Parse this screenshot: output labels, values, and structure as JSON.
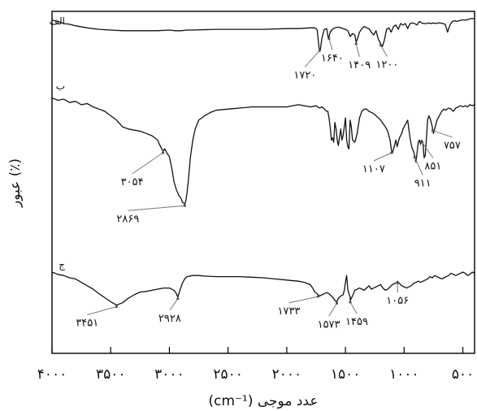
{
  "chart_data": {
    "type": "line",
    "title": "",
    "xlabel": "عدد موجی (cm⁻¹)",
    "ylabel": "عبور (٪)",
    "xlim": [
      4000,
      400
    ],
    "x_ticks": [
      {
        "value": 4000,
        "label": "۴۰۰۰"
      },
      {
        "value": 3500,
        "label": "۳۵۰۰"
      },
      {
        "value": 3000,
        "label": "۳۰۰۰"
      },
      {
        "value": 2500,
        "label": "۲۵۰۰"
      },
      {
        "value": 2000,
        "label": "۲۰۰۰"
      },
      {
        "value": 1500,
        "label": "۱۵۰۰"
      },
      {
        "value": 1000,
        "label": "۱۰۰۰"
      },
      {
        "value": 500,
        "label": "۵۰۰"
      }
    ],
    "grid": false,
    "legend": "none",
    "series": [
      {
        "name": "الف",
        "x": [
          4000,
          3950,
          3900,
          3850,
          3800,
          3700,
          3600,
          3500,
          3400,
          3300,
          3200,
          3100,
          3000,
          2950,
          2900,
          2850,
          2800,
          2600,
          2400,
          2200,
          2000,
          1900,
          1800,
          1760,
          1740,
          1725,
          1715,
          1700,
          1680,
          1660,
          1645,
          1630,
          1610,
          1590,
          1560,
          1540,
          1520,
          1500,
          1480,
          1460,
          1440,
          1420,
          1409,
          1395,
          1380,
          1360,
          1340,
          1320,
          1300,
          1280,
          1260,
          1240,
          1220,
          1200,
          1185,
          1170,
          1150,
          1130,
          1110,
          1090,
          1070,
          1050,
          1030,
          1010,
          990,
          970,
          950,
          930,
          910,
          890,
          870,
          850,
          830,
          810,
          790,
          770,
          750,
          730,
          710,
          690,
          670,
          650,
          630,
          610,
          590,
          570,
          550,
          530,
          510,
          490,
          470,
          450,
          430,
          420,
          410,
          400
        ],
        "y": [
          97,
          95,
          92,
          91,
          89,
          86,
          84,
          83,
          82,
          82,
          82,
          82,
          83,
          82,
          82,
          83,
          83,
          84,
          84,
          84,
          85,
          85,
          86,
          86,
          83,
          58,
          55,
          72,
          84,
          85,
          70,
          80,
          84,
          86,
          87,
          86,
          85,
          84,
          82,
          74,
          78,
          76,
          66,
          72,
          80,
          85,
          88,
          86,
          85,
          80,
          76,
          82,
          70,
          64,
          60,
          68,
          84,
          86,
          80,
          88,
          90,
          84,
          92,
          90,
          92,
          85,
          92,
          93,
          92,
          90,
          95,
          93,
          92,
          92,
          93,
          92,
          93,
          92,
          93,
          93,
          92,
          91,
          80,
          90,
          95,
          96,
          95,
          96,
          97,
          97,
          97,
          98,
          99,
          99,
          99,
          99
        ]
      },
      {
        "name": "ب",
        "x": [
          4000,
          3950,
          3900,
          3850,
          3800,
          3750,
          3700,
          3650,
          3600,
          3550,
          3500,
          3450,
          3400,
          3350,
          3300,
          3250,
          3200,
          3150,
          3100,
          3080,
          3054,
          3040,
          3020,
          3000,
          2980,
          2960,
          2940,
          2920,
          2900,
          2890,
          2880,
          2869,
          2860,
          2850,
          2840,
          2820,
          2800,
          2780,
          2750,
          2700,
          2650,
          2600,
          2500,
          2400,
          2300,
          2200,
          2100,
          2000,
          1900,
          1800,
          1750,
          1720,
          1700,
          1680,
          1660,
          1650,
          1640,
          1630,
          1620,
          1610,
          1600,
          1590,
          1580,
          1570,
          1560,
          1540,
          1530,
          1520,
          1510,
          1500,
          1490,
          1480,
          1470,
          1460,
          1450,
          1440,
          1420,
          1400,
          1380,
          1360,
          1340,
          1320,
          1300,
          1280,
          1260,
          1240,
          1220,
          1200,
          1180,
          1160,
          1140,
          1120,
          1107,
          1100,
          1090,
          1080,
          1070,
          1060,
          1050,
          1040,
          1030,
          1020,
          1010,
          1000,
          990,
          980,
          970,
          960,
          950,
          940,
          930,
          920,
          911,
          900,
          890,
          880,
          870,
          860,
          851,
          840,
          830,
          820,
          810,
          800,
          790,
          780,
          770,
          760,
          757,
          750,
          740,
          730,
          720,
          710,
          700,
          690,
          680,
          670,
          660,
          650,
          620,
          600,
          580,
          560,
          540,
          520,
          500,
          480,
          460,
          440,
          420,
          400
        ],
        "y": [
          98,
          96,
          97,
          94,
          95,
          92,
          93,
          90,
          88,
          86,
          82,
          78,
          72,
          70,
          69,
          68,
          66,
          64,
          60,
          55,
          50,
          52,
          48,
          45,
          35,
          22,
          15,
          10,
          7,
          4,
          3,
          2,
          5,
          12,
          22,
          45,
          60,
          70,
          78,
          82,
          85,
          87,
          88,
          89,
          90,
          90,
          90,
          90,
          92,
          90,
          91,
          89,
          90,
          88,
          86,
          86,
          80,
          72,
          60,
          62,
          58,
          76,
          70,
          60,
          55,
          70,
          60,
          64,
          72,
          80,
          60,
          54,
          52,
          78,
          72,
          60,
          58,
          66,
          80,
          86,
          88,
          88,
          86,
          85,
          84,
          82,
          80,
          78,
          75,
          72,
          68,
          60,
          50,
          48,
          52,
          56,
          60,
          54,
          58,
          62,
          64,
          66,
          70,
          72,
          74,
          76,
          78,
          70,
          62,
          56,
          52,
          50,
          46,
          40,
          48,
          58,
          60,
          56,
          60,
          58,
          44,
          46,
          62,
          78,
          82,
          80,
          76,
          72,
          70,
          66,
          70,
          74,
          78,
          80,
          82,
          84,
          86,
          87,
          88,
          87,
          89,
          88,
          86,
          89,
          90,
          91,
          90,
          91,
          90,
          92,
          91,
          92
        ]
      },
      {
        "name": "ج",
        "x": [
          4000,
          3950,
          3900,
          3850,
          3800,
          3750,
          3700,
          3650,
          3600,
          3550,
          3500,
          3451,
          3400,
          3350,
          3300,
          3250,
          3200,
          3150,
          3100,
          3050,
          3000,
          2960,
          2940,
          2928,
          2910,
          2890,
          2870,
          2850,
          2800,
          2750,
          2700,
          2600,
          2500,
          2400,
          2300,
          2200,
          2100,
          2000,
          1900,
          1850,
          1800,
          1780,
          1760,
          1740,
          1733,
          1720,
          1700,
          1680,
          1660,
          1640,
          1620,
          1600,
          1590,
          1573,
          1560,
          1540,
          1520,
          1510,
          1500,
          1490,
          1480,
          1470,
          1460,
          1459,
          1450,
          1440,
          1420,
          1400,
          1380,
          1360,
          1340,
          1320,
          1300,
          1280,
          1260,
          1240,
          1220,
          1200,
          1180,
          1160,
          1140,
          1120,
          1100,
          1080,
          1060,
          1056,
          1040,
          1020,
          1000,
          980,
          960,
          940,
          920,
          900,
          880,
          860,
          840,
          820,
          800,
          780,
          760,
          740,
          720,
          700,
          680,
          660,
          640,
          620,
          600,
          580,
          560,
          540,
          520,
          500,
          480,
          460,
          440,
          420,
          400
        ],
        "y": [
          90,
          86,
          84,
          80,
          78,
          72,
          66,
          60,
          52,
          45,
          38,
          32,
          36,
          44,
          50,
          55,
          56,
          58,
          60,
          62,
          62,
          58,
          52,
          46,
          58,
          70,
          78,
          82,
          84,
          84,
          83,
          82,
          82,
          82,
          81,
          80,
          78,
          76,
          74,
          72,
          68,
          62,
          55,
          52,
          50,
          48,
          50,
          52,
          54,
          52,
          48,
          44,
          40,
          38,
          44,
          48,
          50,
          58,
          72,
          84,
          60,
          52,
          46,
          40,
          44,
          48,
          58,
          60,
          62,
          60,
          58,
          62,
          66,
          60,
          62,
          64,
          66,
          68,
          62,
          58,
          60,
          64,
          68,
          70,
          72,
          74,
          70,
          66,
          64,
          62,
          64,
          66,
          70,
          72,
          74,
          72,
          74,
          76,
          78,
          82,
          80,
          84,
          82,
          80,
          78,
          80,
          82,
          84,
          88,
          86,
          84,
          86,
          88,
          90,
          88,
          84,
          86,
          90,
          88
        ]
      }
    ],
    "panel_labels": [
      "الف",
      "ب",
      "ج"
    ],
    "annotations": [
      {
        "series": 0,
        "text": "۱۷۲۰",
        "x": 1720
      },
      {
        "series": 0,
        "text": "۱۶۴۰",
        "x": 1640
      },
      {
        "series": 0,
        "text": "۱۴۰۹",
        "x": 1409
      },
      {
        "series": 0,
        "text": "۱۲۰۰",
        "x": 1200
      },
      {
        "series": 1,
        "text": "۳۰۵۴",
        "x": 3054
      },
      {
        "series": 1,
        "text": "۲۸۶۹",
        "x": 2869
      },
      {
        "series": 1,
        "text": "۱۱۰۷",
        "x": 1107
      },
      {
        "series": 1,
        "text": "۹۱۱",
        "x": 911
      },
      {
        "series": 1,
        "text": "۸۵۱",
        "x": 851
      },
      {
        "series": 1,
        "text": "۷۵۷",
        "x": 757
      },
      {
        "series": 2,
        "text": "۳۴۵۱",
        "x": 3451
      },
      {
        "series": 2,
        "text": "۲۹۲۸",
        "x": 2928
      },
      {
        "series": 2,
        "text": "۱۷۳۳",
        "x": 1733
      },
      {
        "series": 2,
        "text": "۱۵۷۳",
        "x": 1573
      },
      {
        "series": 2,
        "text": "۱۴۵۹",
        "x": 1459
      },
      {
        "series": 2,
        "text": "۱۰۵۶",
        "x": 1056
      }
    ]
  }
}
